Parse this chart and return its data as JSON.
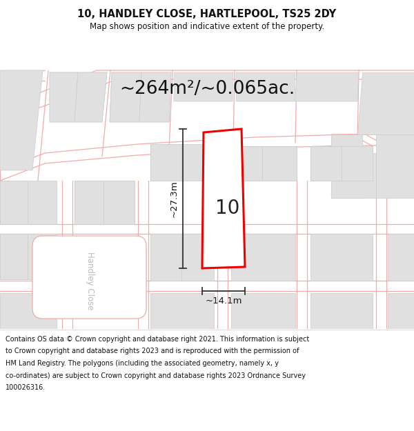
{
  "title": "10, HANDLEY CLOSE, HARTLEPOOL, TS25 2DY",
  "subtitle": "Map shows position and indicative extent of the property.",
  "area_text": "~264m²/~0.065ac.",
  "dim_width": "~14.1m",
  "dim_height": "~27.3m",
  "number_label": "10",
  "footer_lines": [
    "Contains OS data © Crown copyright and database right 2021. This information is subject",
    "to Crown copyright and database rights 2023 and is reproduced with the permission of",
    "HM Land Registry. The polygons (including the associated geometry, namely x, y",
    "co-ordinates) are subject to Crown copyright and database rights 2023 Ordnance Survey",
    "100026316."
  ],
  "bg_color": "#ffffff",
  "road_color": "#f2aaaa",
  "building_color": "#e0e0e0",
  "building_outline": "#cccccc",
  "red_plot_color": "#ee0000",
  "map_bg": "#ffffff",
  "title_fontsize": 10.5,
  "subtitle_fontsize": 8.5,
  "area_fontsize": 19,
  "footer_fontsize": 7.0,
  "number_fontsize": 20,
  "dim_fontsize": 9.5,
  "handley_close_fontsize": 8.5
}
